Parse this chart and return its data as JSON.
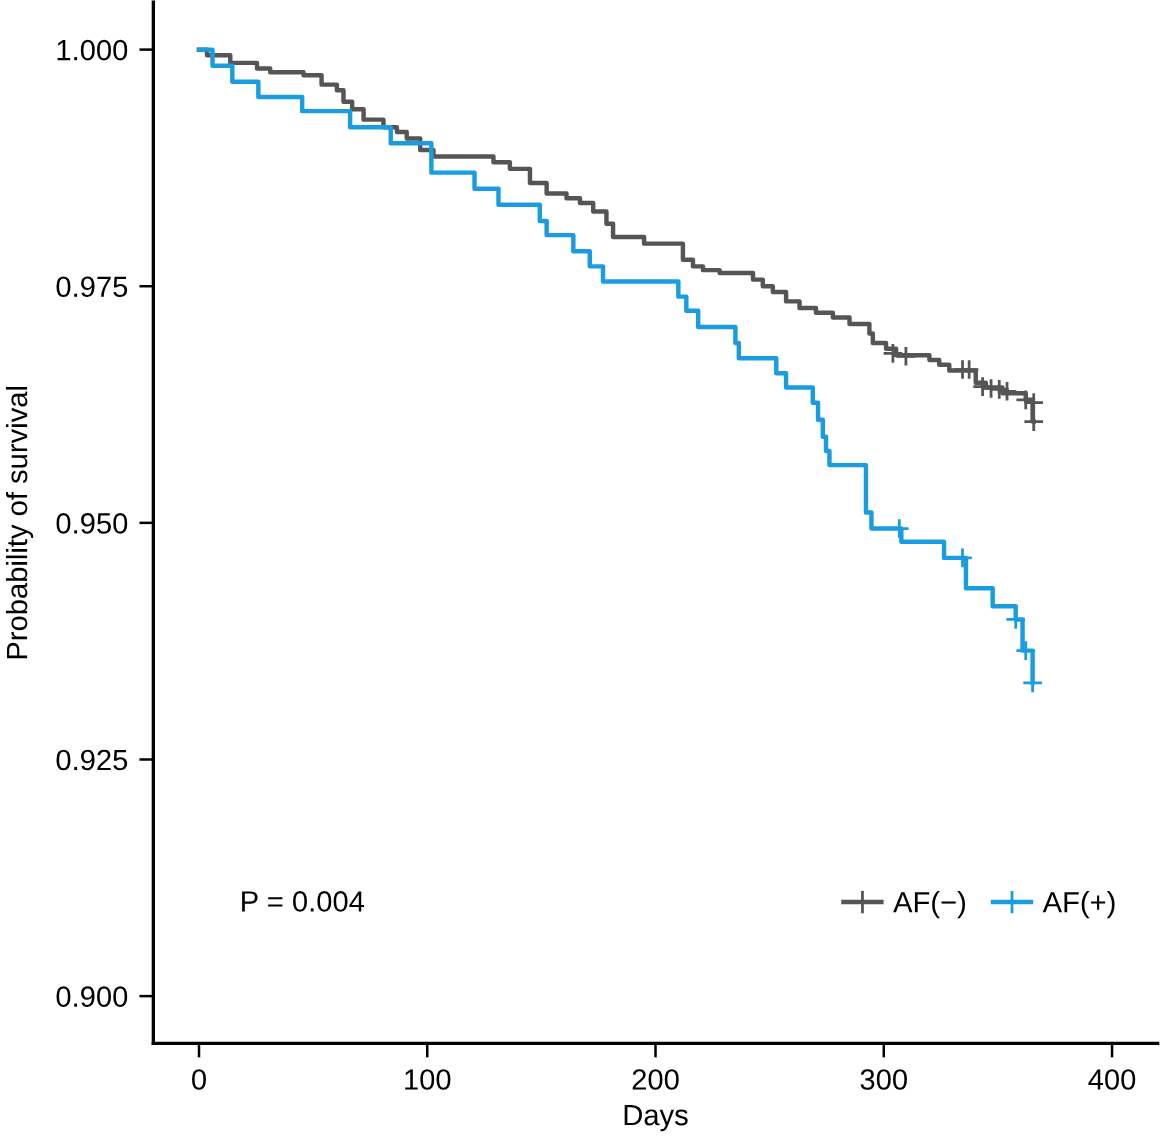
{
  "chart_data": {
    "type": "step",
    "xlabel": "Days",
    "ylabel": "Probability of survival",
    "xlim": [
      -20,
      420
    ],
    "xticks": [
      0,
      100,
      200,
      300,
      400
    ],
    "ylim": [
      0.895,
      1.005
    ],
    "yticks": [
      {
        "value": 0.9,
        "label": "0.900"
      },
      {
        "value": 0.925,
        "label": "0.925"
      },
      {
        "value": 0.95,
        "label": "0.950"
      },
      {
        "value": 0.975,
        "label": "0.975"
      },
      {
        "value": 1.0,
        "label": "1.000"
      }
    ],
    "legend": "bottom right",
    "line_style": "solid",
    "annotations": [
      "P = 0.004"
    ],
    "series": [
      {
        "name": "AF(−)",
        "color": "#555555",
        "x": [
          0,
          3.5,
          13.7,
          25.4,
          31.2,
          45.8,
          53.7,
          60.4,
          63.3,
          67.1,
          72.1,
          80.8,
          86.7,
          91,
          96.9,
          102.7,
          129,
          136.2,
          145,
          152.3,
          161,
          166.9,
          172.7,
          178.5,
          181.4,
          195,
          212,
          216.4,
          220.8,
          228.1,
          242.7,
          247,
          251.4,
          257.2,
          263.1,
          270.3,
          277.7,
          285,
          293.7,
          295.2,
          301,
          305.4,
          320,
          324.3,
          328.7,
          340.3,
          344.7,
          352,
          362.2,
          365.2,
          365.7
        ],
        "values": [
          1.0,
          0.9994,
          0.9986,
          0.998,
          0.9976,
          0.9973,
          0.9963,
          0.9957,
          0.9945,
          0.9937,
          0.9926,
          0.9918,
          0.9913,
          0.9906,
          0.9894,
          0.9887,
          0.9881,
          0.9874,
          0.9859,
          0.9848,
          0.9843,
          0.9838,
          0.9829,
          0.9816,
          0.9802,
          0.9795,
          0.9778,
          0.9771,
          0.9767,
          0.9764,
          0.9757,
          0.975,
          0.9744,
          0.9734,
          0.9727,
          0.9722,
          0.9717,
          0.971,
          0.97,
          0.969,
          0.9684,
          0.9677,
          0.9672,
          0.9667,
          0.9661,
          0.9648,
          0.9643,
          0.9637,
          0.963,
          0.9607,
          0.9607
        ]
      },
      {
        "type": "scatter",
        "marker": "cross",
        "color": "#555555",
        "x": [
          304,
          309.7,
          334.5,
          337.4,
          343.3,
          347,
          350.6,
          354,
          362.2,
          365.7,
          365.7
        ],
        "values": [
          0.9679,
          0.9676,
          0.9662,
          0.9662,
          0.9644,
          0.9642,
          0.9641,
          0.9639,
          0.963,
          0.9627,
          0.9607
        ]
      },
      {
        "name": "AF(+)",
        "color": "#1a9de0",
        "x": [
          0,
          5.9,
          14.6,
          26,
          45.2,
          66.2,
          84,
          101.8,
          120.7,
          131.2,
          149.3,
          152.3,
          164,
          171.2,
          177,
          210,
          213.5,
          218.7,
          235,
          236.5,
          252.9,
          257.2,
          268.9,
          271.2,
          273.3,
          274.7,
          276.2,
          292.2,
          294.6,
          307.7,
          326.4,
          336,
          347.7,
          357.8,
          360.8,
          365.2
        ],
        "values": [
          1.0,
          0.9983,
          0.9966,
          0.995,
          0.9935,
          0.9918,
          0.9901,
          0.987,
          0.9853,
          0.9836,
          0.9819,
          0.9804,
          0.9787,
          0.9771,
          0.9755,
          0.9739,
          0.9724,
          0.9707,
          0.969,
          0.9674,
          0.9658,
          0.9643,
          0.9627,
          0.9609,
          0.9591,
          0.9576,
          0.9561,
          0.9511,
          0.9494,
          0.948,
          0.9463,
          0.9431,
          0.9412,
          0.9398,
          0.9365,
          0.9331
        ]
      },
      {
        "type": "scatter",
        "marker": "cross",
        "color": "#1a9de0",
        "x": [
          306.8,
          334.5,
          357.8,
          362.2,
          365.2
        ],
        "values": [
          0.9494,
          0.9463,
          0.9398,
          0.9365,
          0.9331
        ]
      }
    ]
  }
}
